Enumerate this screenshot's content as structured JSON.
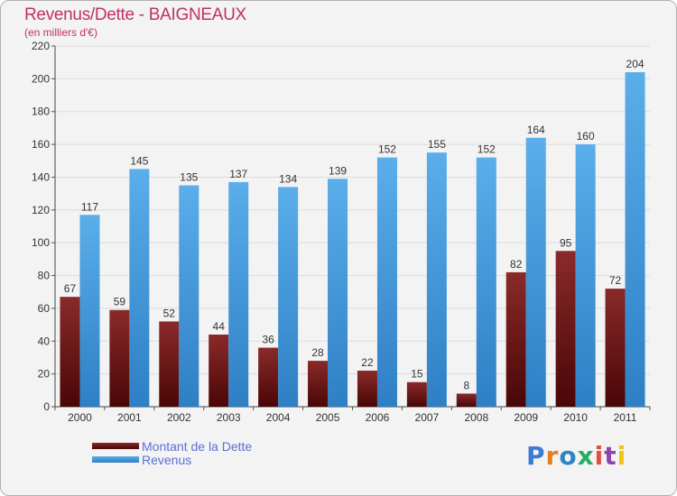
{
  "chart_data": {
    "type": "bar",
    "title": "Revenus/Dette - BAIGNEAUX",
    "subtitle": "(en milliers d'€)",
    "xlabel": "",
    "ylabel": "",
    "ylim": [
      0,
      220
    ],
    "yticks": [
      0,
      20,
      40,
      60,
      80,
      100,
      120,
      140,
      160,
      180,
      200,
      220
    ],
    "grid": true,
    "categories": [
      "2000",
      "2001",
      "2002",
      "2003",
      "2004",
      "2005",
      "2006",
      "2007",
      "2008",
      "2009",
      "2010",
      "2011"
    ],
    "series": [
      {
        "name": "Montant de la Dette",
        "color": "#7a1a1a",
        "values": [
          67,
          59,
          52,
          44,
          36,
          28,
          22,
          15,
          8,
          82,
          95,
          72
        ]
      },
      {
        "name": "Revenus",
        "color": "#4a9ee0",
        "values": [
          117,
          145,
          135,
          137,
          134,
          139,
          152,
          155,
          152,
          164,
          160,
          204
        ]
      }
    ],
    "legend": {
      "placement": "bottom-left",
      "labels": [
        "Montant de la Dette",
        "Revenus"
      ]
    }
  },
  "logo": {
    "text": "Proxiti",
    "colors": [
      "#3a7bd5",
      "#e67e22",
      "#2e86c1",
      "#27ae60",
      "#e74c3c",
      "#8e44ad",
      "#f1c40f"
    ]
  }
}
